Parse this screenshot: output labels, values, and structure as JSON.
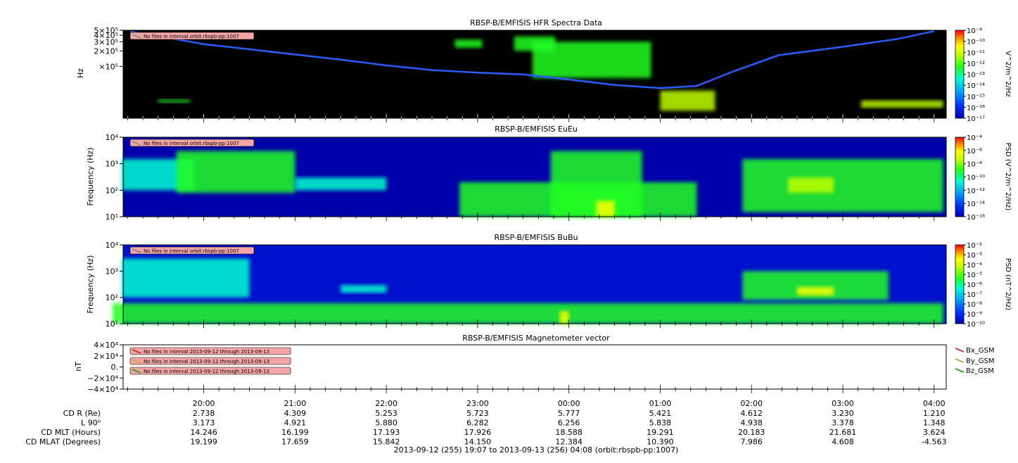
{
  "colors": {
    "spectrogram_background": "#000000",
    "warning_box": "#f4a6a6",
    "bx": "#c0392b",
    "by": "#c8a93a",
    "bz": "#2ca02c"
  },
  "chart_data": [
    {
      "id": "hfr",
      "type": "heatmap",
      "title": "RBSP-B/EMFISIS  HFR Spectra Data",
      "ylabel": "Hz",
      "yscale": "log",
      "ylim": [
        10000,
        500000
      ],
      "yticks": [
        {
          "value": 500000,
          "label": "5×10⁵"
        },
        {
          "value": 400000,
          "label": "4×10⁵"
        },
        {
          "value": 300000,
          "label": "3×10⁵"
        },
        {
          "value": 200000,
          "label": "2×10⁵"
        },
        {
          "value": 100000,
          "label": "×10⁵"
        }
      ],
      "colorbar": {
        "label": "V^2/m^2/Hz",
        "scale": "log",
        "range": [
          1e-17,
          1e-09
        ],
        "ticks": [
          "10⁻⁹",
          "10⁻¹⁰",
          "10⁻¹¹",
          "10⁻¹²",
          "10⁻¹³",
          "10⁻¹⁴",
          "10⁻¹⁵",
          "10⁻¹⁶",
          "10⁻¹⁷"
        ]
      },
      "notes": [
        "No files in interval orbit:rbspb-pp:1007"
      ],
      "cutoff_line": [
        {
          "t": 19.2,
          "y": 470000
        },
        {
          "t": 19.6,
          "y": 360000
        },
        {
          "t": 20.0,
          "y": 270000
        },
        {
          "t": 20.5,
          "y": 215000
        },
        {
          "t": 21.0,
          "y": 170000
        },
        {
          "t": 21.5,
          "y": 135000
        },
        {
          "t": 22.0,
          "y": 105000
        },
        {
          "t": 22.5,
          "y": 85000
        },
        {
          "t": 23.0,
          "y": 76000
        },
        {
          "t": 23.5,
          "y": 70000
        },
        {
          "t": 24.0,
          "y": 56000
        },
        {
          "t": 24.5,
          "y": 44000
        },
        {
          "t": 25.0,
          "y": 38000
        },
        {
          "t": 25.4,
          "y": 42000
        },
        {
          "t": 25.8,
          "y": 80000
        },
        {
          "t": 26.3,
          "y": 165000
        },
        {
          "t": 27.0,
          "y": 240000
        },
        {
          "t": 27.6,
          "y": 340000
        },
        {
          "t": 28.0,
          "y": 480000
        }
      ],
      "emission_patches": [
        {
          "t0": 23.6,
          "t1": 24.9,
          "y0": 60000,
          "y1": 300000,
          "level": 0.45
        },
        {
          "t0": 22.75,
          "t1": 23.05,
          "y0": 230000,
          "y1": 330000,
          "level": 0.5
        },
        {
          "t0": 23.4,
          "t1": 23.85,
          "y0": 200000,
          "y1": 380000,
          "level": 0.5
        },
        {
          "t0": 25.0,
          "t1": 25.6,
          "y0": 14000,
          "y1": 34000,
          "level": 0.65
        },
        {
          "t0": 27.2,
          "t1": 28.1,
          "y0": 16000,
          "y1": 22000,
          "level": 0.6
        },
        {
          "t0": 19.5,
          "t1": 19.85,
          "y0": 20000,
          "y1": 23000,
          "level": 0.45
        }
      ]
    },
    {
      "id": "eueu",
      "type": "heatmap",
      "title": "RBSP-B/EMFISIS  EuEu",
      "ylabel": "Frequency (Hz)",
      "yscale": "log",
      "ylim": [
        10,
        10000
      ],
      "yticks": [
        {
          "value": 10000,
          "label": "10⁴"
        },
        {
          "value": 1000,
          "label": "10³"
        },
        {
          "value": 100,
          "label": "10²"
        },
        {
          "value": 10,
          "label": "10¹"
        }
      ],
      "colorbar": {
        "label": "PSD (V^2/m^2/Hz)",
        "scale": "log",
        "range": [
          1e-16,
          0.0001
        ],
        "ticks": [
          "10⁻⁴",
          "10⁻⁶",
          "10⁻⁸",
          "10⁻¹⁰",
          "10⁻¹²",
          "10⁻¹⁴",
          "10⁻¹⁶"
        ]
      },
      "notes": [
        "No files in interval orbit:rbspb-pp:1007"
      ],
      "emission_patches": [
        {
          "t0": 19.1,
          "t1": 19.9,
          "y0": 100,
          "y1": 1500,
          "level": 0.4
        },
        {
          "t0": 19.7,
          "t1": 21.0,
          "y0": 80,
          "y1": 3000,
          "level": 0.45
        },
        {
          "t0": 21.0,
          "t1": 22.0,
          "y0": 100,
          "y1": 300,
          "level": 0.4
        },
        {
          "t0": 22.8,
          "t1": 25.4,
          "y0": 10,
          "y1": 200,
          "level": 0.5
        },
        {
          "t0": 23.8,
          "t1": 24.8,
          "y0": 10,
          "y1": 3000,
          "level": 0.5
        },
        {
          "t0": 24.3,
          "t1": 24.5,
          "y0": 10,
          "y1": 40,
          "level": 0.75
        },
        {
          "t0": 25.9,
          "t1": 28.1,
          "y0": 15,
          "y1": 1500,
          "level": 0.45
        },
        {
          "t0": 26.4,
          "t1": 26.9,
          "y0": 80,
          "y1": 300,
          "level": 0.6
        }
      ]
    },
    {
      "id": "bubu",
      "type": "heatmap",
      "title": "RBSP-B/EMFISIS  BuBu",
      "ylabel": "Frequency (Hz)",
      "yscale": "log",
      "ylim": [
        10,
        10000
      ],
      "yticks": [
        {
          "value": 10000,
          "label": "10⁴"
        },
        {
          "value": 1000,
          "label": "10³"
        },
        {
          "value": 100,
          "label": "10²"
        },
        {
          "value": 10,
          "label": "10¹"
        }
      ],
      "colorbar": {
        "label": "PSD (nT^2/Hz)",
        "scale": "log",
        "range": [
          1e-10,
          0.01
        ],
        "ticks": [
          "10⁻²",
          "10⁻³",
          "10⁻⁴",
          "10⁻⁵",
          "10⁻⁶",
          "10⁻⁷",
          "10⁻⁸",
          "10⁻⁹",
          "10⁻¹⁰"
        ]
      },
      "notes": [
        "No files in interval orbit:rbspb-pp:1007"
      ],
      "emission_patches": [
        {
          "t0": 19.0,
          "t1": 28.1,
          "y0": 10,
          "y1": 60,
          "level": 0.45
        },
        {
          "t0": 19.1,
          "t1": 20.5,
          "y0": 100,
          "y1": 3000,
          "level": 0.35
        },
        {
          "t0": 21.5,
          "t1": 22.0,
          "y0": 150,
          "y1": 300,
          "level": 0.35
        },
        {
          "t0": 25.9,
          "t1": 27.5,
          "y0": 80,
          "y1": 1000,
          "level": 0.45
        },
        {
          "t0": 26.5,
          "t1": 26.9,
          "y0": 120,
          "y1": 250,
          "level": 0.75
        },
        {
          "t0": 23.9,
          "t1": 24.0,
          "y0": 10,
          "y1": 30,
          "level": 0.7
        }
      ]
    },
    {
      "id": "mag",
      "type": "line",
      "title": "RBSP-B/EMFISIS  Magnetometer vector",
      "ylabel": "nT",
      "ylim": [
        -40000,
        40000
      ],
      "yticks": [
        {
          "value": 40000,
          "label": "4×10⁴"
        },
        {
          "value": 20000,
          "label": "2×10⁴"
        },
        {
          "value": 0,
          "label": "0."
        },
        {
          "value": -20000,
          "label": "−2×10⁴"
        },
        {
          "value": -40000,
          "label": "−4×10⁴"
        }
      ],
      "notes": [
        "No files in interval 2013-09-12 through 2013-09-13",
        "No files in interval 2013-09-12 through 2013-09-13",
        "No files in interval 2013-09-12 through 2013-09-13"
      ],
      "series": [
        {
          "name": "Bx_GSM",
          "values": []
        },
        {
          "name": "By_GSM",
          "values": []
        },
        {
          "name": "Bz_GSM",
          "values": []
        }
      ]
    }
  ],
  "x_axis": {
    "range_hours": [
      19.117,
      28.133
    ],
    "ticks": [
      {
        "t": 20,
        "label": "20:00"
      },
      {
        "t": 21,
        "label": "21:00"
      },
      {
        "t": 22,
        "label": "22:00"
      },
      {
        "t": 23,
        "label": "23:00"
      },
      {
        "t": 24,
        "label": "00:00"
      },
      {
        "t": 25,
        "label": "01:00"
      },
      {
        "t": 26,
        "label": "02:00"
      },
      {
        "t": 27,
        "label": "03:00"
      },
      {
        "t": 28,
        "label": "04:00"
      }
    ]
  },
  "ephemeris": {
    "rows": [
      {
        "label": "CD R (Re)",
        "values": [
          "2.738",
          "4.309",
          "5.253",
          "5.723",
          "5.777",
          "5.421",
          "4.612",
          "3.230",
          "1.210"
        ]
      },
      {
        "label": "L 90⁰",
        "values": [
          "3.173",
          "4.921",
          "5.880",
          "6.282",
          "6.256",
          "5.838",
          "4.938",
          "3.378",
          "1.348"
        ]
      },
      {
        "label": "CD MLT (Hours)",
        "values": [
          "14.246",
          "16.199",
          "17.193",
          "17.926",
          "18.588",
          "19.291",
          "20.183",
          "21.681",
          "3.624"
        ]
      },
      {
        "label": "CD MLAT (Degrees)",
        "values": [
          "19.199",
          "17.659",
          "15.842",
          "14.150",
          "12.384",
          "10.390",
          "7.986",
          "4.608",
          "-4.563"
        ]
      }
    ]
  },
  "footer": "2013-09-12 (255) 19:07 to 2013-09-13 (256) 04:08 (orbit:rbspb-pp:1007)"
}
